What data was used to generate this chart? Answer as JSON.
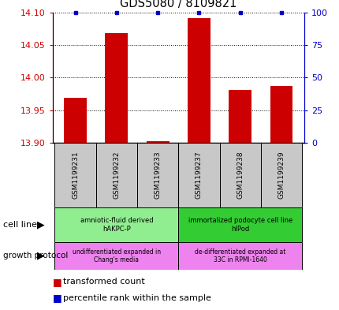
{
  "title": "GDS5080 / 8109821",
  "samples": [
    "GSM1199231",
    "GSM1199232",
    "GSM1199233",
    "GSM1199237",
    "GSM1199238",
    "GSM1199239"
  ],
  "transformed_count": [
    13.969,
    14.068,
    13.902,
    14.091,
    13.981,
    13.987
  ],
  "percentile_rank": [
    100,
    100,
    100,
    100,
    100,
    100
  ],
  "ylim_left": [
    13.9,
    14.1
  ],
  "ylim_right": [
    0,
    100
  ],
  "yticks_left": [
    13.9,
    13.95,
    14.0,
    14.05,
    14.1
  ],
  "yticks_right": [
    0,
    25,
    50,
    75,
    100
  ],
  "cell_line_groups": [
    {
      "label": "amniotic-fluid derived\nhAKPC-P",
      "start": 0,
      "end": 3,
      "color": "#90EE90"
    },
    {
      "label": "immortalized podocyte cell line\nhIPod",
      "start": 3,
      "end": 6,
      "color": "#33CC33"
    }
  ],
  "growth_protocol_groups": [
    {
      "label": "undifferentiated expanded in\nChang's media",
      "start": 0,
      "end": 3,
      "color": "#EE82EE"
    },
    {
      "label": "de-differentiated expanded at\n33C in RPMI-1640",
      "start": 3,
      "end": 6,
      "color": "#EE82EE"
    }
  ],
  "bar_color": "#CC0000",
  "dot_color": "#0000CC",
  "left_axis_color": "#CC0000",
  "right_axis_color": "#0000CC",
  "sample_box_color": "#C8C8C8",
  "figwidth": 4.31,
  "figheight": 3.93,
  "dpi": 100
}
